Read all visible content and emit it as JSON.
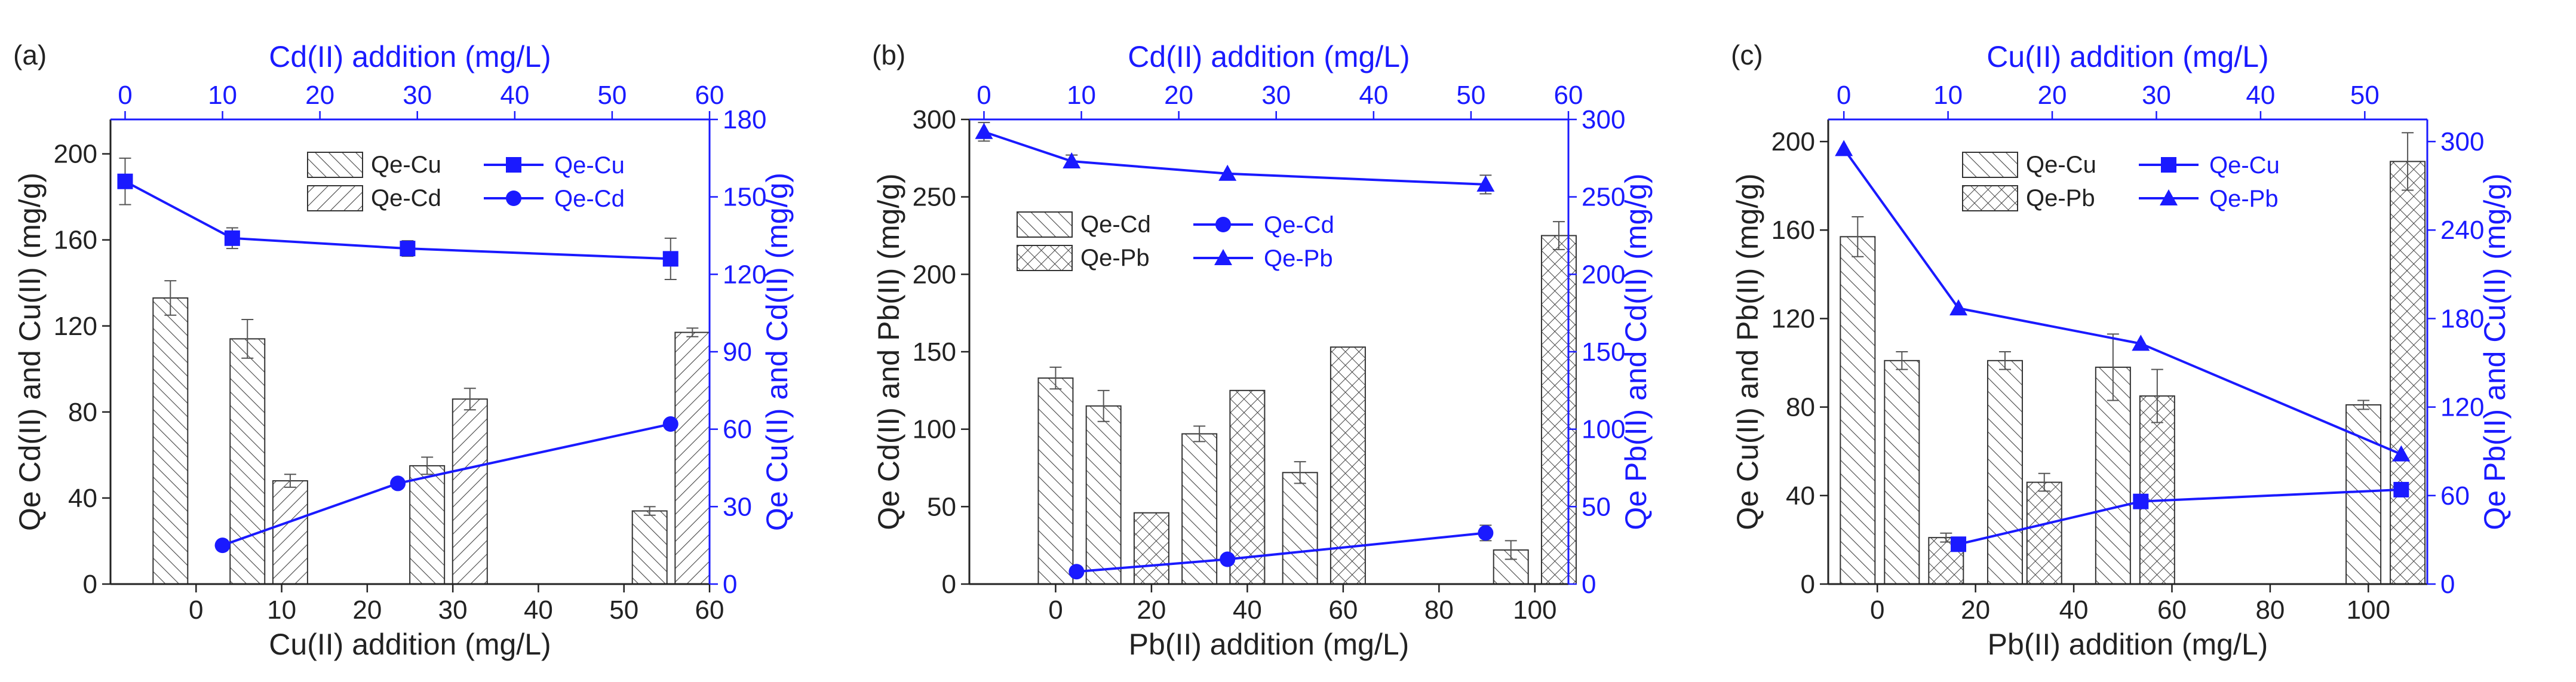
{
  "colors": {
    "black": "#222222",
    "blue": "#1a1aff",
    "background": "#ffffff"
  },
  "chart_data": [
    {
      "panel_label": "(a)",
      "type": "bar+line",
      "xlabel": "Cu(II) addition (mg/L)",
      "xlim": [
        -10,
        60
      ],
      "xticks": [
        "0",
        "10",
        "20",
        "30",
        "40",
        "50",
        "60"
      ],
      "ylabel": "Qe Cd(II) and Cu(II) (mg/g)",
      "ylim": [
        0,
        216
      ],
      "yticks": [
        "0",
        "40",
        "80",
        "120",
        "160",
        "200"
      ],
      "x2label": "Cd(II)  addition (mg/L)",
      "x2lim": [
        -1.5,
        60
      ],
      "x2ticks": [
        "0",
        "10",
        "20",
        "30",
        "40",
        "50",
        "60"
      ],
      "y2label": "Qe Cu(II) and Cd(II) (mg/g)",
      "y2lim": [
        0,
        180
      ],
      "y2ticks": [
        "0",
        "30",
        "60",
        "90",
        "120",
        "150",
        "180"
      ],
      "legend": {
        "position": "top-right",
        "bars": [
          "Qe-Cu",
          "Qe-Cd"
        ],
        "lines": [
          "Qe-Cu",
          "Qe-Cd"
        ]
      },
      "bar_series": [
        {
          "name": "Qe-Cu",
          "pattern": "hatch-right",
          "bars": [
            {
              "x": -3,
              "value": 133,
              "err": 8
            },
            {
              "x": 6,
              "value": 114,
              "err": 9
            },
            {
              "x": 27,
              "value": 55,
              "err": 4
            },
            {
              "x": 53,
              "value": 34,
              "err": 2
            }
          ]
        },
        {
          "name": "Qe-Cd",
          "pattern": "hatch-left",
          "bars": [
            {
              "x": 11,
              "value": 48,
              "err": 3
            },
            {
              "x": 32,
              "value": 86,
              "err": 5
            },
            {
              "x": 58,
              "value": 117,
              "err": 2
            }
          ]
        }
      ],
      "line_series": [
        {
          "name": "Qe-Cu",
          "marker": "square",
          "points": [
            {
              "x": 0,
              "y": 156,
              "err": 9
            },
            {
              "x": 11,
              "y": 134,
              "err": 4
            },
            {
              "x": 29,
              "y": 130,
              "err": 3
            },
            {
              "x": 56,
              "y": 126,
              "err": 8
            }
          ]
        },
        {
          "name": "Qe-Cd",
          "marker": "circle",
          "points": [
            {
              "x": 10,
              "y": 15,
              "err": 0
            },
            {
              "x": 28,
              "y": 39,
              "err": 0
            },
            {
              "x": 56,
              "y": 62,
              "err": 0
            }
          ]
        }
      ]
    },
    {
      "panel_label": "(b)",
      "type": "bar+line",
      "xlabel": "Pb(II)  addition (mg/L)",
      "xlim": [
        -18,
        107
      ],
      "xticks": [
        "0",
        "20",
        "40",
        "60",
        "80",
        "100"
      ],
      "ylabel": "Qe Cd(II) and Pb(II) (mg/g)",
      "ylim": [
        0,
        300
      ],
      "yticks": [
        "0",
        "50",
        "100",
        "150",
        "200",
        "250",
        "300"
      ],
      "x2label": "Cd(II)  addition (mg/L)",
      "x2lim": [
        -1.5,
        60
      ],
      "x2ticks": [
        "0",
        "10",
        "20",
        "30",
        "40",
        "50",
        "60"
      ],
      "y2label": "Qe  Pb(II) and Cd(II) (mg/g)",
      "y2lim": [
        0,
        300
      ],
      "y2ticks": [
        "0",
        "50",
        "100",
        "150",
        "200",
        "250",
        "300"
      ],
      "legend": {
        "position": "center-left",
        "bars": [
          "Qe-Cd",
          "Qe-Pb"
        ],
        "lines": [
          "Qe-Cd",
          "Qe-Pb"
        ]
      },
      "bar_series": [
        {
          "name": "Qe-Cd",
          "pattern": "hatch-right",
          "bars": [
            {
              "x": 0,
              "value": 133,
              "err": 7
            },
            {
              "x": 10,
              "value": 115,
              "err": 10
            },
            {
              "x": 30,
              "value": 97,
              "err": 5
            },
            {
              "x": 51,
              "value": 72,
              "err": 7
            },
            {
              "x": 95,
              "value": 22,
              "err": 6
            }
          ]
        },
        {
          "name": "Qe-Pb",
          "pattern": "crosshatch",
          "bars": [
            {
              "x": 20,
              "value": 46,
              "err": 0
            },
            {
              "x": 40,
              "value": 125,
              "err": 0
            },
            {
              "x": 61,
              "value": 153,
              "err": 0
            },
            {
              "x": 105,
              "value": 225,
              "err": 9
            }
          ]
        }
      ],
      "line_series": [
        {
          "name": "Qe-Pb",
          "marker": "triangle",
          "points": [
            {
              "x": 0,
              "y": 292,
              "err": 6
            },
            {
              "x": 9,
              "y": 273,
              "err": 4
            },
            {
              "x": 25,
              "y": 265,
              "err": 0
            },
            {
              "x": 51.5,
              "y": 258,
              "err": 6
            }
          ]
        },
        {
          "name": "Qe-Cd",
          "marker": "circle",
          "points": [
            {
              "x": 9.5,
              "y": 8,
              "err": 0
            },
            {
              "x": 25,
              "y": 16,
              "err": 0
            },
            {
              "x": 51.5,
              "y": 33,
              "err": 5
            }
          ]
        }
      ]
    },
    {
      "panel_label": "(c)",
      "type": "bar+line",
      "xlabel": "Pb(II)  addition (mg/L)",
      "xlim": [
        -10,
        112
      ],
      "xticks": [
        "0",
        "20",
        "40",
        "60",
        "80",
        "100"
      ],
      "ylabel": "Qe Cu(II) and Pb(II) (mg/g)",
      "ylim": [
        0,
        210
      ],
      "yticks": [
        "0",
        "40",
        "80",
        "120",
        "160",
        "200"
      ],
      "x2label": "Cu(II)  addition (mg/L)",
      "x2lim": [
        -1.5,
        56
      ],
      "x2ticks": [
        "0",
        "10",
        "20",
        "30",
        "40",
        "50"
      ],
      "y2label": "Qe Pb(II) and Cu(II) (mg/g)",
      "y2lim": [
        0,
        315
      ],
      "y2ticks": [
        "0",
        "60",
        "120",
        "180",
        "240",
        "300"
      ],
      "legend": {
        "position": "top-center",
        "bars": [
          "Qe-Cu",
          "Qe-Pb"
        ],
        "lines": [
          "Qe-Cu",
          "Qe-Pb"
        ]
      },
      "bar_series": [
        {
          "name": "Qe-Cu",
          "pattern": "hatch-right",
          "bars": [
            {
              "x": -4,
              "value": 157,
              "err": 9
            },
            {
              "x": 5,
              "value": 101,
              "err": 4
            },
            {
              "x": 26,
              "value": 101,
              "err": 4
            },
            {
              "x": 48,
              "value": 98,
              "err": 15
            },
            {
              "x": 99,
              "value": 81,
              "err": 2
            }
          ]
        },
        {
          "name": "Qe-Pb",
          "pattern": "crosshatch",
          "bars": [
            {
              "x": 14,
              "value": 21,
              "err": 2
            },
            {
              "x": 34,
              "value": 46,
              "err": 4
            },
            {
              "x": 57,
              "value": 85,
              "err": 12
            },
            {
              "x": 108,
              "value": 191,
              "err": 13
            }
          ]
        }
      ],
      "line_series": [
        {
          "name": "Qe-Pb",
          "marker": "triangle",
          "points": [
            {
              "x": 0,
              "y": 295,
              "err": 0
            },
            {
              "x": 11,
              "y": 187,
              "err": 0
            },
            {
              "x": 28.5,
              "y": 163,
              "err": 0
            },
            {
              "x": 53.5,
              "y": 88,
              "err": 0
            }
          ]
        },
        {
          "name": "Qe-Cu",
          "marker": "square",
          "points": [
            {
              "x": 11,
              "y": 27,
              "err": 0
            },
            {
              "x": 28.5,
              "y": 56,
              "err": 0
            },
            {
              "x": 53.5,
              "y": 64,
              "err": 0
            }
          ]
        }
      ]
    }
  ]
}
